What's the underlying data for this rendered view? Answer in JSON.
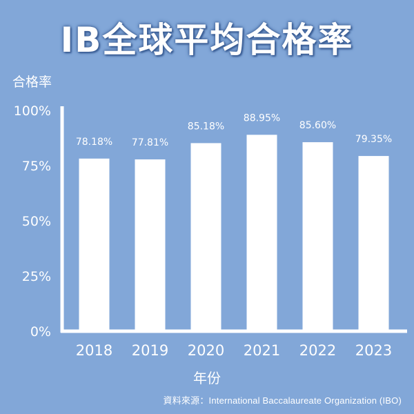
{
  "title": "IB全球平均合格率",
  "source": "資料來源：International Baccalaureate Organization (IBO)",
  "colors": {
    "background": "#82a7d8",
    "bar": "#ffffff",
    "text": "#ffffff",
    "title_outline": "#3c5f96"
  },
  "chart_data": {
    "type": "bar",
    "title": "IB全球平均合格率",
    "xlabel": "年份",
    "ylabel": "合格率",
    "categories": [
      "2018",
      "2019",
      "2020",
      "2021",
      "2022",
      "2023"
    ],
    "values": [
      78.18,
      77.81,
      85.18,
      88.95,
      85.6,
      79.35
    ],
    "value_labels": [
      "78.18%",
      "77.81%",
      "85.18%",
      "88.95%",
      "85.60%",
      "79.35%"
    ],
    "ylim": [
      0,
      100
    ],
    "yticks": [
      0,
      25,
      50,
      75,
      100
    ],
    "ytick_labels": [
      "0%",
      "25%",
      "50%",
      "75%",
      "100%"
    ],
    "grid": false,
    "legend": "none"
  }
}
